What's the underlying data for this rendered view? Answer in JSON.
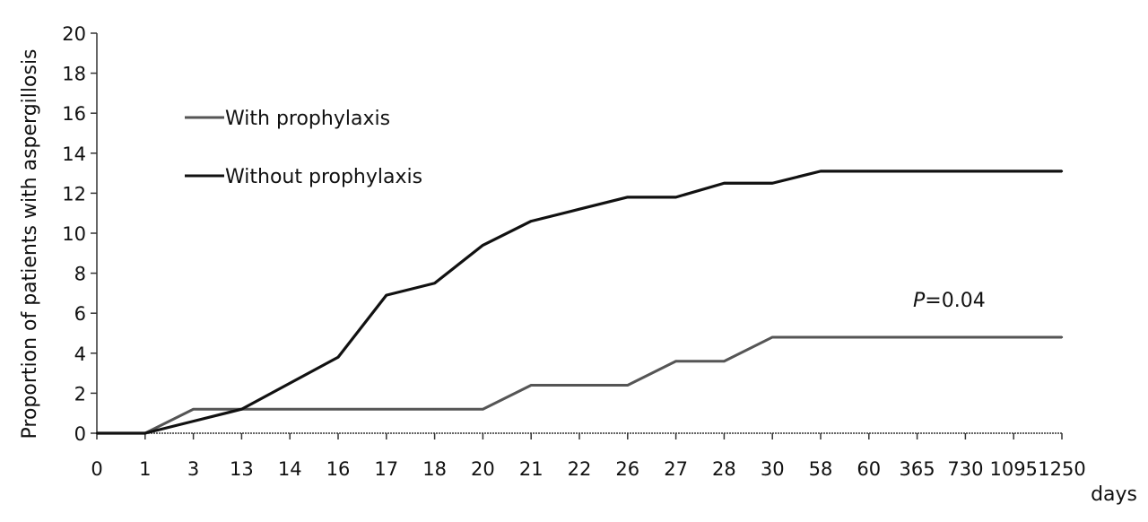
{
  "chart_data": {
    "type": "line",
    "title": "",
    "xlabel": "days",
    "ylabel": "Proportion of patients with aspergillosis",
    "categories": [
      "0",
      "1",
      "3",
      "13",
      "14",
      "16",
      "17",
      "18",
      "20",
      "21",
      "22",
      "26",
      "27",
      "28",
      "30",
      "58",
      "60",
      "365",
      "730",
      "1095",
      "1250"
    ],
    "ylim": [
      0,
      20
    ],
    "yticks": [
      0,
      2,
      4,
      6,
      8,
      10,
      12,
      14,
      16,
      18,
      20
    ],
    "series": [
      {
        "name": "With prophylaxis",
        "color": "#555555",
        "values": [
          0,
          0,
          1.2,
          1.2,
          1.2,
          1.2,
          1.2,
          1.2,
          1.2,
          2.4,
          2.4,
          2.4,
          3.6,
          3.6,
          4.8,
          4.8,
          4.8,
          4.8,
          4.8,
          4.8,
          4.8
        ]
      },
      {
        "name": "Without prophylaxis",
        "color": "#111111",
        "values": [
          0,
          0,
          0.6,
          1.2,
          2.5,
          3.8,
          6.9,
          7.5,
          9.4,
          10.6,
          11.2,
          11.8,
          11.8,
          12.5,
          12.5,
          13.1,
          13.1,
          13.1,
          13.1,
          13.1,
          13.1
        ]
      }
    ],
    "annotations": [
      {
        "text": "P",
        "text2": "=0.04"
      }
    ],
    "legend_position": "top-left",
    "grid": false
  }
}
